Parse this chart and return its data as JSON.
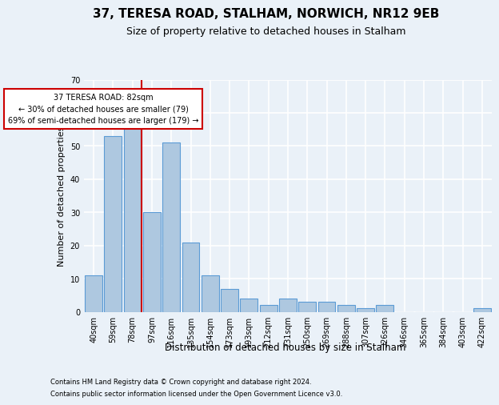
{
  "title": "37, TERESA ROAD, STALHAM, NORWICH, NR12 9EB",
  "subtitle": "Size of property relative to detached houses in Stalham",
  "xlabel": "Distribution of detached houses by size in Stalham",
  "ylabel": "Number of detached properties",
  "categories": [
    "40sqm",
    "59sqm",
    "78sqm",
    "97sqm",
    "116sqm",
    "135sqm",
    "154sqm",
    "173sqm",
    "193sqm",
    "212sqm",
    "231sqm",
    "250sqm",
    "269sqm",
    "288sqm",
    "307sqm",
    "326sqm",
    "346sqm",
    "365sqm",
    "384sqm",
    "403sqm",
    "422sqm"
  ],
  "values": [
    11,
    53,
    59,
    30,
    51,
    21,
    11,
    7,
    4,
    2,
    4,
    3,
    3,
    2,
    1,
    2,
    0,
    0,
    0,
    0,
    1
  ],
  "bar_color": "#aec8e0",
  "bar_edge_color": "#5b9bd5",
  "highlight_label": "37 TERESA ROAD: 82sqm",
  "annotation_line1": "← 30% of detached houses are smaller (79)",
  "annotation_line2": "69% of semi-detached houses are larger (179) →",
  "red_line_color": "#cc0000",
  "annotation_box_color": "#ffffff",
  "annotation_box_edge": "#cc0000",
  "ylim": [
    0,
    70
  ],
  "yticks": [
    0,
    10,
    20,
    30,
    40,
    50,
    60,
    70
  ],
  "footnote1": "Contains HM Land Registry data © Crown copyright and database right 2024.",
  "footnote2": "Contains public sector information licensed under the Open Government Licence v3.0.",
  "bg_color": "#eaf1f8",
  "plot_bg_color": "#eaf1f8",
  "grid_color": "#ffffff",
  "title_fontsize": 11,
  "subtitle_fontsize": 9,
  "axis_label_fontsize": 8,
  "tick_fontsize": 7,
  "footnote_fontsize": 6
}
